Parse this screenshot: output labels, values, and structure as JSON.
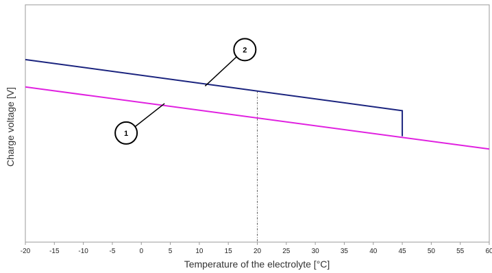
{
  "chart_data": {
    "type": "line",
    "xlabel": "Temperature of the electrolyte [°C]",
    "ylabel": "Charge voltage [V]",
    "xlim": [
      -20,
      60
    ],
    "x_ticks": [
      "-20",
      "-15",
      "-10",
      "-5",
      "0",
      "5",
      "10",
      "15",
      "20",
      "25",
      "30",
      "35",
      "40",
      "45",
      "50",
      "55",
      "60"
    ],
    "y_ticks": [],
    "grid": false,
    "reference_line": {
      "x": 20,
      "style": "dash-dot"
    },
    "series": [
      {
        "id": "1",
        "color": "#e020e0",
        "x": [
          -20,
          60
        ],
        "y": [
          2.6,
          2.26
        ]
      },
      {
        "id": "2",
        "color": "#1a237e",
        "x": [
          -20,
          45,
          45
        ],
        "y": [
          2.75,
          2.47,
          2.33
        ]
      }
    ],
    "callouts": [
      {
        "label": "1",
        "series": "1",
        "at_x": 4
      },
      {
        "label": "2",
        "series": "2",
        "at_x": 11
      }
    ]
  }
}
